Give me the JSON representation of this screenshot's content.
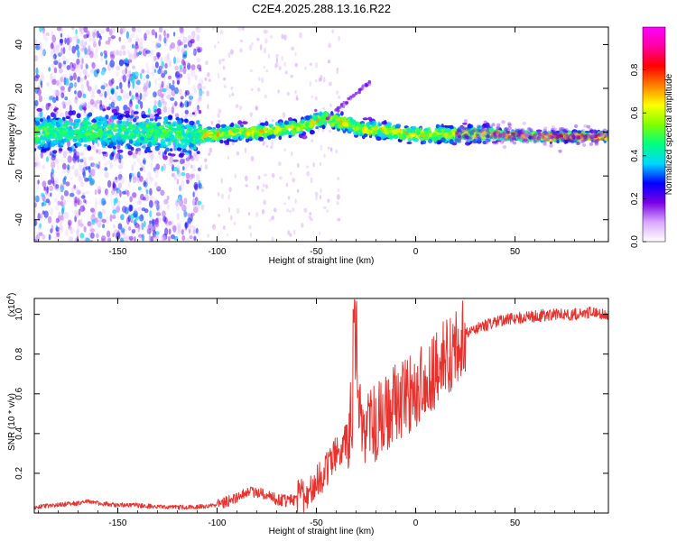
{
  "figure_title": "C2E4.2025.288.13.16.R22",
  "chart_data": [
    {
      "type": "heatmap",
      "title": "C2E4.2025.288.13.16.R22",
      "xlabel": "Height of straight line (km)",
      "ylabel": "Frequency (Hz)",
      "xlim": [
        -192,
        97
      ],
      "ylim": [
        -50,
        48
      ],
      "xticks": [
        -150,
        -100,
        -50,
        0,
        50
      ],
      "xtick_labels": [
        "-150",
        "-100",
        "-50",
        "0",
        "50"
      ],
      "yticks": [
        -40,
        -20,
        0,
        20,
        40
      ],
      "ytick_labels": [
        "-40",
        "-20",
        "0",
        "20",
        "40"
      ],
      "colorbar": {
        "label": "Normalized spectral amplitude",
        "range": [
          0,
          1
        ],
        "ticks": [
          0.0,
          0.2,
          0.4,
          0.6,
          0.8
        ],
        "tick_labels": [
          "0.0",
          "0.2",
          "0.4",
          "0.6",
          "0.8"
        ],
        "colors": [
          "#ffffff",
          "#d9a8ff",
          "#7a00e6",
          "#0000ff",
          "#00d8ff",
          "#00ff80",
          "#7fff00",
          "#ffff00",
          "#ff8000",
          "#ff0000",
          "#ff00a0",
          "#ff00ff"
        ]
      },
      "ridge": {
        "x": [
          -192,
          -160,
          -130,
          -110,
          -100,
          -90,
          -80,
          -70,
          -60,
          -55,
          -50,
          -45,
          -40,
          -35,
          -30,
          -20,
          -10,
          0,
          20,
          40,
          60,
          80,
          97
        ],
        "freq": [
          0,
          0,
          0,
          -2,
          -1,
          0,
          0,
          1,
          2,
          3,
          5,
          6,
          5,
          4,
          2,
          1,
          0,
          -1,
          -1,
          -1,
          -2,
          -2,
          -2
        ]
      },
      "noise_band": {
        "x_range": [
          -192,
          -108
        ],
        "freq_range": [
          -50,
          48
        ]
      }
    },
    {
      "type": "line",
      "xlabel": "Height of straight line (km)",
      "ylabel": "SNR (10 * v/v)",
      "y_multiplier": "(x10",
      "y_multiplier_exp": "4",
      "y_multiplier_close": ")",
      "xlim": [
        -192,
        97
      ],
      "ylim": [
        0,
        1.08
      ],
      "xticks": [
        -150,
        -100,
        -50,
        0,
        50
      ],
      "xtick_labels": [
        "-150",
        "-100",
        "-50",
        "0",
        "50"
      ],
      "yticks": [
        0.2,
        0.4,
        0.6,
        0.8,
        1.0
      ],
      "ytick_labels": [
        "0.2",
        "0.4",
        "0.6",
        "0.8",
        "1.0"
      ],
      "color": "#e8322e",
      "series": [
        {
          "name": "SNR",
          "x": [
            -192,
            -180,
            -170,
            -165,
            -160,
            -150,
            -140,
            -130,
            -120,
            -110,
            -100,
            -95,
            -90,
            -85,
            -80,
            -78,
            -75,
            -70,
            -65,
            -60,
            -55,
            -50,
            -45,
            -40,
            -35,
            -32,
            -30,
            -28,
            -25,
            -20,
            -15,
            -10,
            -5,
            0,
            5,
            10,
            15,
            20,
            25,
            30,
            40,
            50,
            60,
            70,
            80,
            90,
            97
          ],
          "values": [
            0.03,
            0.04,
            0.05,
            0.06,
            0.05,
            0.04,
            0.04,
            0.03,
            0.03,
            0.03,
            0.04,
            0.06,
            0.08,
            0.1,
            0.11,
            0.1,
            0.09,
            0.07,
            0.06,
            0.07,
            0.1,
            0.15,
            0.22,
            0.3,
            0.38,
            0.5,
            0.62,
            0.45,
            0.42,
            0.45,
            0.5,
            0.55,
            0.58,
            0.62,
            0.66,
            0.72,
            0.78,
            0.84,
            0.9,
            0.93,
            0.96,
            0.98,
            0.99,
            1.0,
            1.0,
            1.01,
            1.0
          ]
        }
      ]
    }
  ]
}
